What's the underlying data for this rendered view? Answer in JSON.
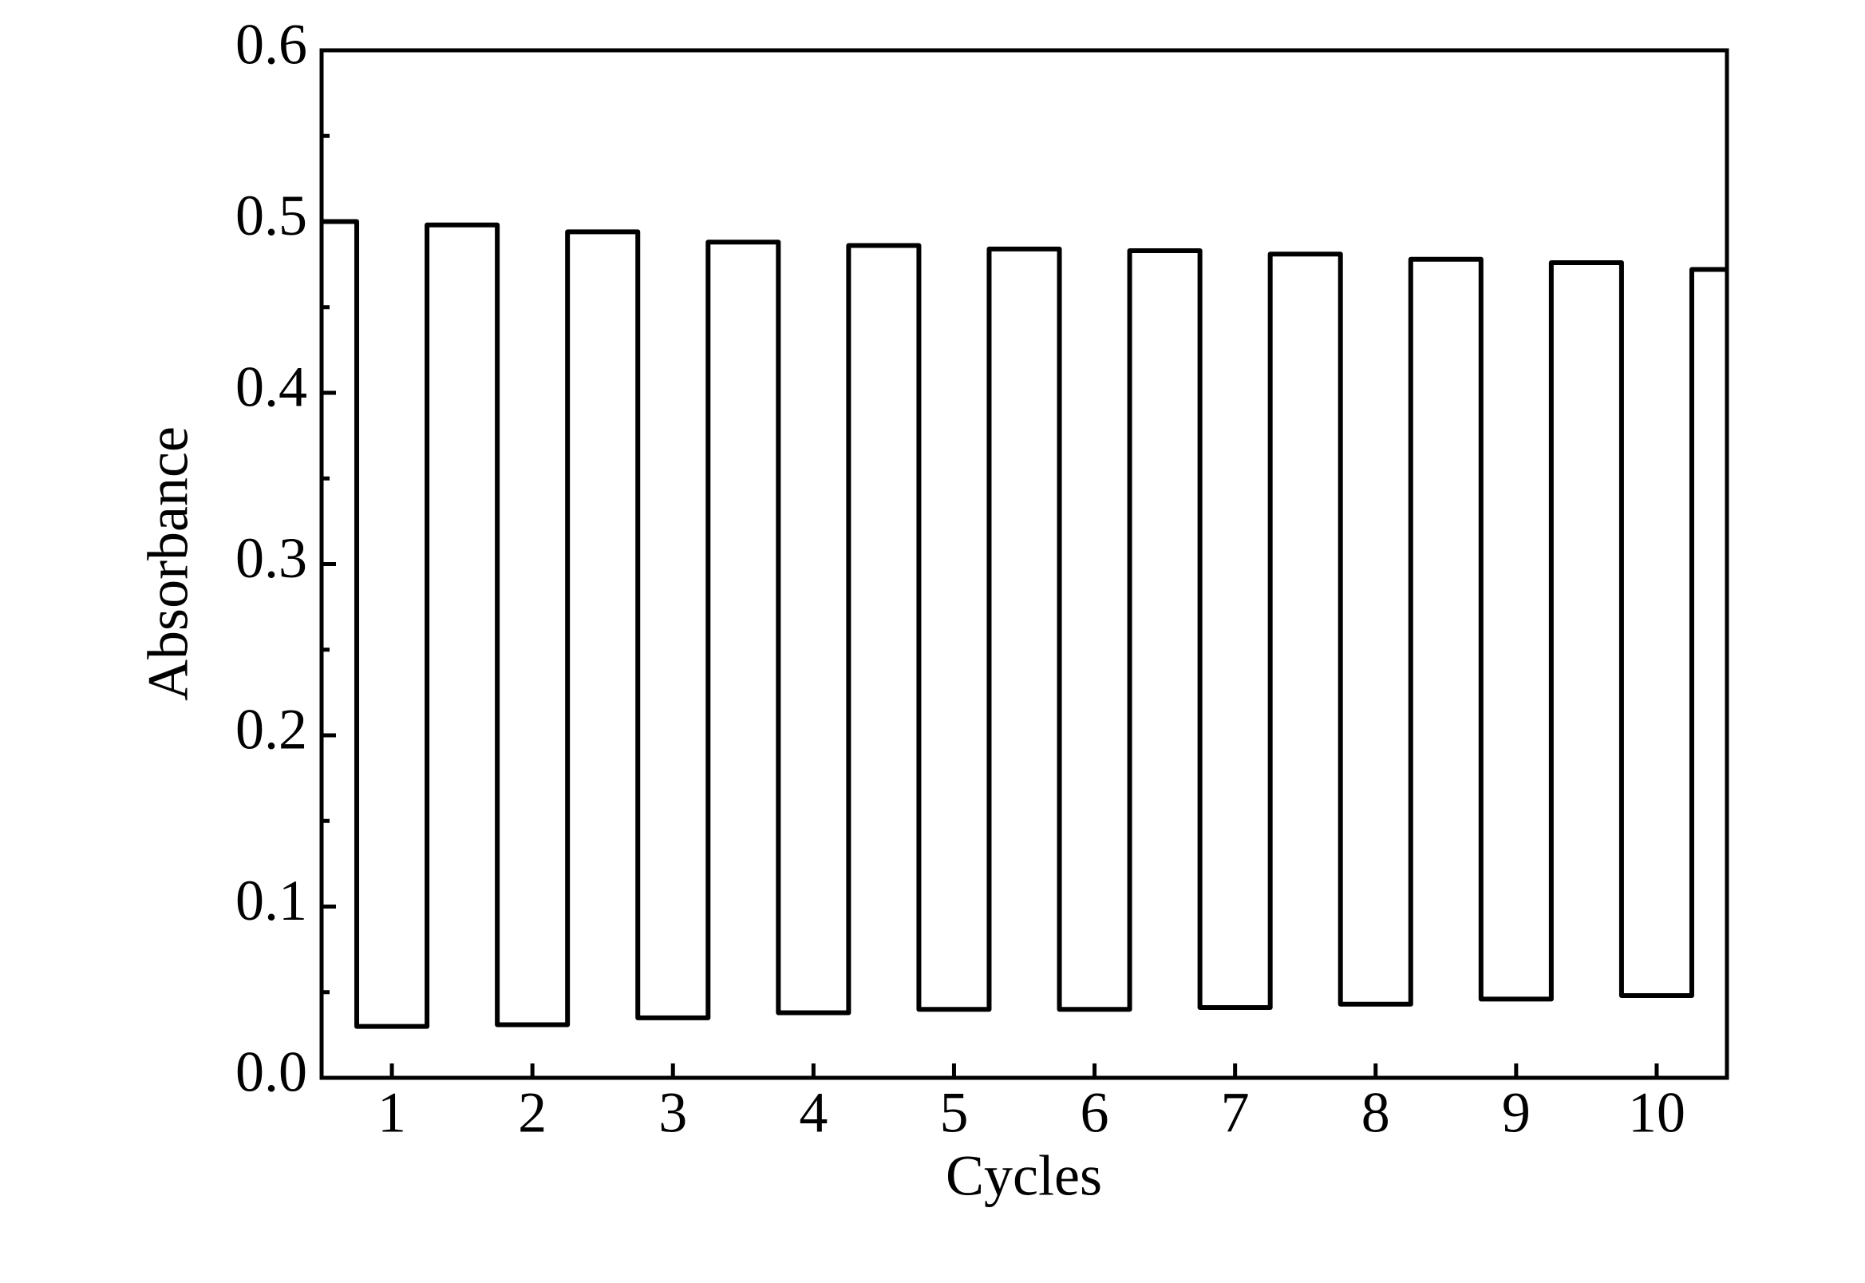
{
  "chart_data": {
    "type": "line",
    "x_label": "Cycles",
    "y_label": "Absorbance",
    "xlim": [
      0.5,
      10.5
    ],
    "xticks": [
      1,
      2,
      3,
      4,
      5,
      6,
      7,
      8,
      9,
      10
    ],
    "ylim": [
      0,
      0.6
    ],
    "yticks": [
      {
        "value": 0,
        "label": "0.0"
      },
      0.1,
      0.2,
      0.3,
      0.4,
      0.5,
      0.6
    ],
    "yminorticks": [
      0.05,
      0.15,
      0.25,
      0.35,
      0.45,
      0.55
    ],
    "grid": false,
    "color": "#000000",
    "x": [
      0.5,
      0.75,
      0.75,
      1.25,
      1.25,
      1.75,
      1.75,
      2.25,
      2.25,
      2.75,
      2.75,
      3.25,
      3.25,
      3.75,
      3.75,
      4.25,
      4.25,
      4.75,
      4.75,
      5.25,
      5.25,
      5.75,
      5.75,
      6.25,
      6.25,
      6.75,
      6.75,
      7.25,
      7.25,
      7.75,
      7.75,
      8.25,
      8.25,
      8.75,
      8.75,
      9.25,
      9.25,
      9.75,
      9.75,
      10.25,
      10.25,
      10.5
    ],
    "values": [
      0.5,
      0.5,
      0.03,
      0.03,
      0.498,
      0.498,
      0.031,
      0.031,
      0.494,
      0.494,
      0.035,
      0.035,
      0.488,
      0.488,
      0.038,
      0.038,
      0.486,
      0.486,
      0.04,
      0.04,
      0.484,
      0.484,
      0.04,
      0.04,
      0.483,
      0.483,
      0.041,
      0.041,
      0.481,
      0.481,
      0.043,
      0.043,
      0.478,
      0.478,
      0.046,
      0.046,
      0.476,
      0.476,
      0.048,
      0.048,
      0.472,
      0.472
    ]
  }
}
